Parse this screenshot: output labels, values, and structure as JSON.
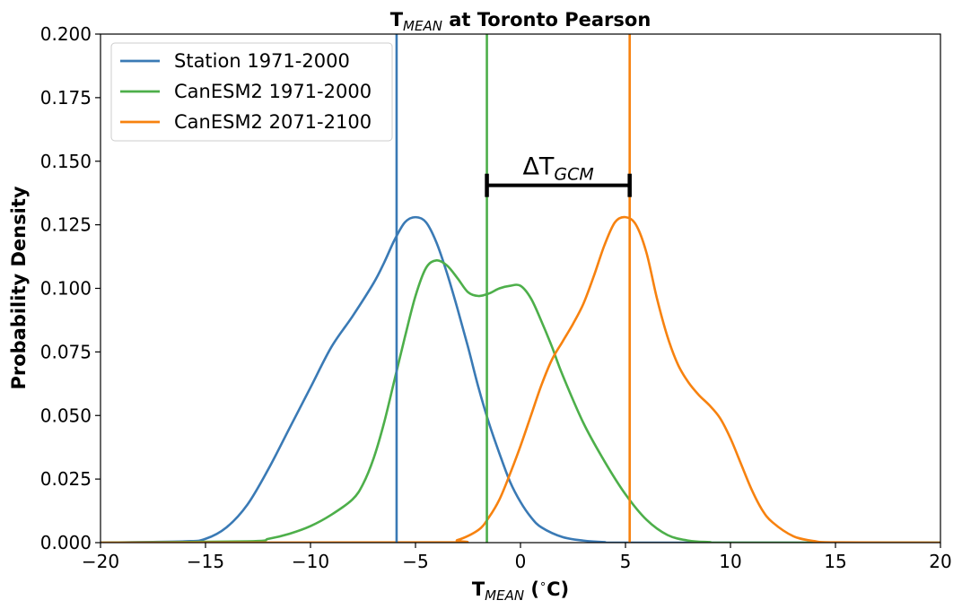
{
  "chart_data": {
    "type": "line",
    "title": {
      "main": "T",
      "sub": "MEAN",
      "rest": " at Toronto Pearson"
    },
    "xlabel": {
      "main": "T",
      "sub": "MEAN",
      "rest": " (",
      "sup": "∘",
      "end": "C)"
    },
    "ylabel": "Probability Density",
    "xlim": [
      -20,
      20
    ],
    "ylim": [
      0,
      0.2
    ],
    "xticks": [
      -20,
      -15,
      -10,
      -5,
      0,
      5,
      10,
      15,
      20
    ],
    "xtick_labels": [
      "−20",
      "−15",
      "−10",
      "−5",
      "0",
      "5",
      "10",
      "15",
      "20"
    ],
    "yticks": [
      0,
      0.025,
      0.05,
      0.075,
      0.1,
      0.125,
      0.15,
      0.175,
      0.2
    ],
    "ytick_labels": [
      "0.000",
      "0.025",
      "0.050",
      "0.075",
      "0.100",
      "0.125",
      "0.150",
      "0.175",
      "0.200"
    ],
    "grid": false,
    "legend_position": "top-left",
    "series": [
      {
        "name": "Station 1971-2000",
        "color": "#3a7ab5",
        "x": [
          -20,
          -16,
          -15,
          -14,
          -13,
          -12,
          -11,
          -10,
          -9,
          -8,
          -7,
          -6.5,
          -6,
          -5.5,
          -5,
          -4.5,
          -4,
          -3.5,
          -3,
          -2.5,
          -2,
          -1.5,
          -1,
          -0.5,
          0,
          0.5,
          1,
          2,
          3,
          4,
          5,
          20
        ],
        "y": [
          0,
          0.0005,
          0.0015,
          0.006,
          0.015,
          0.029,
          0.045,
          0.061,
          0.077,
          0.089,
          0.102,
          0.11,
          0.119,
          0.126,
          0.128,
          0.126,
          0.118,
          0.106,
          0.092,
          0.077,
          0.061,
          0.047,
          0.035,
          0.024,
          0.016,
          0.01,
          0.006,
          0.0022,
          0.0008,
          0.0002,
          0,
          0
        ]
      },
      {
        "name": "CanESM2 1971-2000",
        "color": "#4daf4a",
        "x": [
          -20,
          -13,
          -12,
          -11,
          -10,
          -9,
          -8,
          -7.5,
          -7,
          -6.5,
          -6,
          -5.5,
          -5,
          -4.5,
          -4,
          -3.5,
          -3,
          -2.5,
          -2,
          -1.5,
          -1,
          -0.5,
          0,
          0.5,
          1,
          1.5,
          2,
          3,
          4,
          5,
          6,
          7,
          8,
          9,
          10,
          20
        ],
        "y": [
          0,
          0.0005,
          0.0015,
          0.0035,
          0.0065,
          0.011,
          0.017,
          0.023,
          0.033,
          0.047,
          0.064,
          0.081,
          0.097,
          0.108,
          0.111,
          0.109,
          0.104,
          0.0985,
          0.097,
          0.098,
          0.1,
          0.101,
          0.101,
          0.096,
          0.087,
          0.077,
          0.066,
          0.047,
          0.032,
          0.019,
          0.009,
          0.003,
          0.0008,
          0.0002,
          0,
          0
        ]
      },
      {
        "name": "CanESM2 2071-2100",
        "color": "#f7820f",
        "x": [
          -20,
          -4,
          -3,
          -2,
          -1.5,
          -1,
          -0.5,
          0,
          0.5,
          1,
          1.5,
          2,
          2.5,
          3,
          3.5,
          4,
          4.5,
          5,
          5.5,
          6,
          6.5,
          7,
          7.5,
          8,
          8.5,
          9,
          9.5,
          10,
          10.5,
          11,
          11.5,
          12,
          13,
          14,
          15,
          20
        ],
        "y": [
          0,
          0.0001,
          0.001,
          0.005,
          0.01,
          0.017,
          0.027,
          0.038,
          0.05,
          0.062,
          0.072,
          0.079,
          0.086,
          0.094,
          0.105,
          0.117,
          0.126,
          0.128,
          0.125,
          0.114,
          0.096,
          0.081,
          0.07,
          0.063,
          0.058,
          0.054,
          0.049,
          0.041,
          0.031,
          0.021,
          0.013,
          0.008,
          0.0025,
          0.0006,
          0.0001,
          0
        ]
      }
    ],
    "vlines": [
      {
        "x": -5.9,
        "color": "#3a7ab5"
      },
      {
        "x": -1.6,
        "color": "#4daf4a"
      },
      {
        "x": 5.2,
        "color": "#f7820f"
      }
    ],
    "annotation": {
      "x_start": -1.6,
      "x_end": 5.2,
      "y": 0.1405,
      "label": {
        "main": "ΔT",
        "sub": "GCM"
      }
    }
  }
}
